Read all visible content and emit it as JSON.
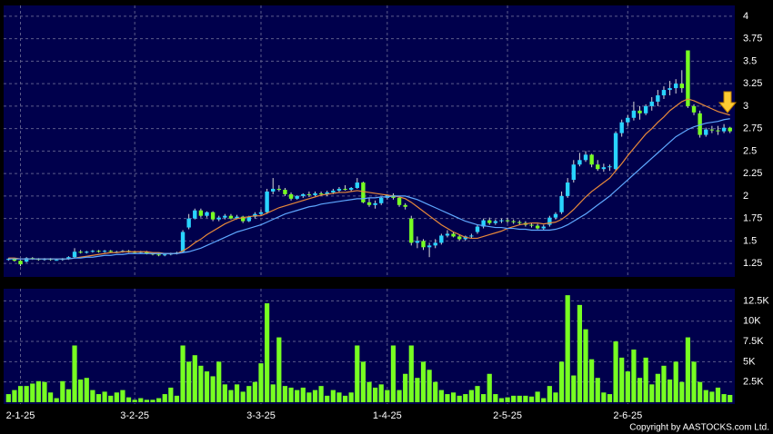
{
  "chart_data": [
    {
      "type": "candlestick",
      "categories": [
        null,
        null,
        "2-1-25",
        null,
        null,
        null,
        null,
        null,
        null,
        null,
        null,
        null,
        null,
        null,
        null,
        null,
        null,
        null,
        null,
        null,
        null,
        "3-2-25",
        null,
        null,
        null,
        null,
        null,
        null,
        null,
        null,
        null,
        null,
        null,
        null,
        null,
        null,
        null,
        null,
        null,
        null,
        null,
        null,
        "3-3-25",
        null,
        null,
        null,
        null,
        null,
        null,
        null,
        null,
        null,
        null,
        null,
        null,
        null,
        null,
        null,
        null,
        null,
        null,
        null,
        null,
        "1-4-25",
        null,
        null,
        null,
        null,
        null,
        null,
        null,
        null,
        null,
        null,
        null,
        null,
        null,
        null,
        null,
        null,
        null,
        null,
        null,
        "2-5-25",
        null,
        null,
        null,
        null,
        null,
        null,
        null,
        null,
        null,
        null,
        null,
        null,
        null,
        null,
        null,
        null,
        null,
        null,
        null,
        "2-6-25",
        null,
        null,
        null,
        null,
        null,
        null,
        null,
        null,
        null,
        null,
        null,
        null,
        null,
        null,
        null,
        null,
        null
      ],
      "open": [
        1.3,
        1.3,
        1.28,
        1.27,
        1.31,
        1.3,
        1.29,
        1.3,
        1.29,
        1.29,
        1.3,
        1.32,
        1.38,
        1.37,
        1.38,
        1.39,
        1.38,
        1.39,
        1.38,
        1.38,
        1.39,
        1.38,
        1.37,
        1.38,
        1.36,
        1.35,
        1.34,
        1.35,
        1.36,
        1.38,
        1.65,
        1.75,
        1.84,
        1.78,
        1.82,
        1.74,
        1.76,
        1.78,
        1.75,
        1.77,
        1.72,
        1.77,
        1.8,
        1.82,
        2.05,
        2.08,
        2.07,
        2.02,
        1.97,
        2.0,
        2.02,
        2.01,
        2.03,
        2.02,
        2.04,
        2.06,
        2.08,
        2.07,
        2.09,
        2.15,
        1.93,
        1.9,
        1.92,
        1.98,
        2.01,
        1.98,
        1.9,
        1.75,
        1.48,
        1.5,
        1.43,
        1.45,
        1.48,
        1.56,
        1.58,
        1.55,
        1.52,
        1.55,
        1.6,
        1.66,
        1.73,
        1.7,
        1.72,
        1.73,
        1.72,
        1.71,
        1.7,
        1.68,
        1.67,
        1.64,
        1.68,
        1.76,
        1.82,
        2.0,
        2.18,
        2.35,
        2.4,
        2.46,
        2.35,
        2.3,
        2.32,
        2.3,
        2.7,
        2.82,
        2.87,
        2.95,
        2.92,
        3.0,
        3.05,
        3.12,
        3.18,
        3.2,
        3.25,
        3.62,
        3.0,
        2.92,
        2.68,
        2.74,
        2.73,
        2.72,
        2.76
      ],
      "high": [
        1.31,
        1.31,
        1.29,
        1.32,
        1.32,
        1.31,
        1.31,
        1.31,
        1.3,
        1.31,
        1.33,
        1.42,
        1.4,
        1.39,
        1.4,
        1.4,
        1.4,
        1.4,
        1.39,
        1.4,
        1.4,
        1.39,
        1.39,
        1.39,
        1.37,
        1.37,
        1.36,
        1.37,
        1.38,
        1.62,
        1.8,
        1.86,
        1.86,
        1.83,
        1.83,
        1.78,
        1.8,
        1.8,
        1.79,
        1.78,
        1.78,
        1.82,
        1.85,
        2.08,
        2.2,
        2.12,
        2.09,
        2.04,
        2.01,
        2.03,
        2.05,
        2.05,
        2.05,
        2.06,
        2.08,
        2.1,
        2.12,
        2.1,
        2.2,
        2.16,
        1.98,
        1.95,
        1.99,
        2.02,
        2.03,
        1.99,
        1.92,
        1.78,
        1.55,
        1.52,
        1.48,
        1.52,
        1.58,
        1.62,
        1.6,
        1.57,
        1.56,
        1.58,
        1.68,
        1.75,
        1.76,
        1.74,
        1.75,
        1.76,
        1.74,
        1.73,
        1.72,
        1.7,
        1.69,
        1.68,
        1.78,
        1.82,
        2.05,
        2.2,
        2.4,
        2.48,
        2.5,
        2.47,
        2.4,
        2.36,
        2.35,
        2.72,
        2.85,
        2.9,
        3.05,
        3.0,
        3.02,
        3.1,
        3.18,
        3.22,
        3.28,
        3.3,
        3.4,
        3.62,
        3.02,
        2.95,
        2.76,
        2.78,
        2.78,
        2.8,
        2.77
      ],
      "low": [
        1.28,
        1.27,
        1.22,
        1.26,
        1.29,
        1.28,
        1.28,
        1.28,
        1.28,
        1.28,
        1.29,
        1.31,
        1.36,
        1.36,
        1.37,
        1.37,
        1.37,
        1.37,
        1.37,
        1.37,
        1.37,
        1.36,
        1.36,
        1.35,
        1.34,
        1.33,
        1.33,
        1.34,
        1.35,
        1.37,
        1.63,
        1.74,
        1.76,
        1.76,
        1.72,
        1.72,
        1.74,
        1.74,
        1.74,
        1.7,
        1.71,
        1.75,
        1.78,
        1.8,
        2.02,
        2.05,
        2.0,
        1.95,
        1.96,
        1.98,
        1.99,
        2.0,
        2.0,
        2.0,
        2.02,
        2.04,
        2.06,
        2.05,
        2.08,
        1.92,
        1.88,
        1.86,
        1.9,
        1.96,
        1.96,
        1.88,
        1.85,
        1.45,
        1.42,
        1.4,
        1.32,
        1.42,
        1.46,
        1.54,
        1.54,
        1.5,
        1.5,
        1.53,
        1.58,
        1.64,
        1.68,
        1.68,
        1.7,
        1.7,
        1.69,
        1.68,
        1.66,
        1.65,
        1.63,
        1.62,
        1.66,
        1.74,
        1.8,
        1.98,
        2.15,
        2.33,
        2.38,
        2.32,
        2.28,
        2.27,
        2.28,
        2.28,
        2.66,
        2.78,
        2.84,
        2.85,
        2.9,
        2.95,
        3.0,
        3.08,
        3.12,
        3.14,
        3.15,
        2.98,
        2.9,
        2.65,
        2.66,
        2.7,
        2.68,
        2.7,
        2.7
      ],
      "close": [
        1.3,
        1.28,
        1.24,
        1.31,
        1.3,
        1.29,
        1.3,
        1.29,
        1.29,
        1.3,
        1.32,
        1.38,
        1.37,
        1.38,
        1.39,
        1.38,
        1.39,
        1.38,
        1.38,
        1.39,
        1.38,
        1.37,
        1.38,
        1.36,
        1.35,
        1.34,
        1.35,
        1.36,
        1.37,
        1.6,
        1.75,
        1.84,
        1.78,
        1.82,
        1.74,
        1.76,
        1.78,
        1.75,
        1.77,
        1.72,
        1.77,
        1.8,
        1.82,
        2.05,
        2.08,
        2.07,
        2.02,
        1.97,
        2.0,
        2.02,
        2.01,
        2.03,
        2.02,
        2.04,
        2.06,
        2.08,
        2.07,
        2.09,
        2.15,
        1.93,
        1.9,
        1.92,
        1.98,
        2.01,
        1.98,
        1.9,
        1.88,
        1.48,
        1.5,
        1.43,
        1.45,
        1.48,
        1.56,
        1.58,
        1.55,
        1.52,
        1.55,
        1.56,
        1.66,
        1.73,
        1.7,
        1.72,
        1.73,
        1.72,
        1.71,
        1.7,
        1.68,
        1.67,
        1.64,
        1.66,
        1.76,
        1.8,
        2.0,
        2.15,
        2.35,
        2.4,
        2.46,
        2.35,
        2.3,
        2.32,
        2.33,
        2.7,
        2.82,
        2.87,
        2.95,
        2.92,
        3.0,
        3.05,
        3.12,
        3.18,
        3.2,
        3.25,
        3.2,
        3.0,
        2.93,
        2.68,
        2.74,
        2.73,
        2.72,
        2.76,
        2.72
      ],
      "up_color": "#29d4ff",
      "down_color": "#77ff22",
      "lines": [
        {
          "color": "#e8893a",
          "values": [
            1.31,
            1.31,
            1.3,
            1.3,
            1.3,
            1.3,
            1.3,
            1.3,
            1.3,
            1.3,
            1.3,
            1.31,
            1.32,
            1.33,
            1.34,
            1.35,
            1.36,
            1.37,
            1.37,
            1.38,
            1.38,
            1.38,
            1.38,
            1.38,
            1.37,
            1.37,
            1.36,
            1.36,
            1.36,
            1.39,
            1.43,
            1.48,
            1.52,
            1.57,
            1.61,
            1.65,
            1.69,
            1.72,
            1.75,
            1.76,
            1.77,
            1.78,
            1.78,
            1.81,
            1.84,
            1.87,
            1.89,
            1.91,
            1.93,
            1.95,
            1.97,
            1.99,
            2.01,
            2.02,
            2.03,
            2.04,
            2.04,
            2.05,
            2.06,
            2.05,
            2.04,
            2.03,
            2.02,
            2.01,
            2.0,
            1.99,
            1.97,
            1.93,
            1.88,
            1.83,
            1.78,
            1.73,
            1.68,
            1.64,
            1.6,
            1.57,
            1.54,
            1.53,
            1.53,
            1.55,
            1.57,
            1.59,
            1.61,
            1.64,
            1.66,
            1.68,
            1.69,
            1.7,
            1.7,
            1.69,
            1.7,
            1.71,
            1.74,
            1.79,
            1.85,
            1.92,
            1.99,
            2.05,
            2.1,
            2.15,
            2.2,
            2.28,
            2.36,
            2.45,
            2.53,
            2.61,
            2.69,
            2.75,
            2.82,
            2.88,
            2.95,
            3.0,
            3.05,
            3.08,
            3.06,
            3.03,
            3.0,
            2.97,
            2.94,
            2.92,
            2.9
          ]
        },
        {
          "color": "#5fa8ff",
          "values": [
            1.3,
            1.3,
            1.3,
            1.3,
            1.3,
            1.3,
            1.3,
            1.3,
            1.3,
            1.3,
            1.3,
            1.31,
            1.31,
            1.32,
            1.32,
            1.33,
            1.34,
            1.34,
            1.35,
            1.35,
            1.36,
            1.36,
            1.36,
            1.36,
            1.36,
            1.36,
            1.36,
            1.36,
            1.36,
            1.37,
            1.38,
            1.4,
            1.42,
            1.45,
            1.48,
            1.51,
            1.54,
            1.57,
            1.6,
            1.62,
            1.64,
            1.66,
            1.68,
            1.71,
            1.74,
            1.77,
            1.8,
            1.82,
            1.84,
            1.86,
            1.88,
            1.89,
            1.91,
            1.92,
            1.93,
            1.94,
            1.95,
            1.96,
            1.97,
            1.97,
            1.98,
            1.98,
            1.99,
            1.99,
            2.0,
            2.0,
            2.0,
            1.98,
            1.96,
            1.93,
            1.9,
            1.87,
            1.84,
            1.81,
            1.78,
            1.75,
            1.72,
            1.7,
            1.68,
            1.67,
            1.66,
            1.65,
            1.65,
            1.64,
            1.64,
            1.63,
            1.63,
            1.62,
            1.62,
            1.62,
            1.62,
            1.63,
            1.65,
            1.68,
            1.72,
            1.76,
            1.8,
            1.85,
            1.9,
            1.95,
            2.0,
            2.06,
            2.12,
            2.18,
            2.24,
            2.3,
            2.36,
            2.42,
            2.48,
            2.54,
            2.6,
            2.66,
            2.7,
            2.74,
            2.77,
            2.79,
            2.81,
            2.82,
            2.83,
            2.85,
            2.86
          ]
        }
      ],
      "ylim": [
        1.1,
        4.12
      ],
      "yticks": [
        1.25,
        1.5,
        1.75,
        2,
        2.25,
        2.5,
        2.75,
        3,
        3.25,
        3.5,
        3.75,
        4
      ],
      "grid": true
    },
    {
      "type": "bar",
      "values": [
        1000,
        1500,
        2000,
        2000,
        2300,
        2600,
        2500,
        1200,
        500,
        2600,
        1600,
        7000,
        2800,
        3000,
        1500,
        1000,
        1300,
        800,
        1200,
        1500,
        600,
        300,
        500,
        300,
        300,
        500,
        1000,
        1800,
        800,
        7000,
        5000,
        5800,
        4500,
        3800,
        3200,
        5000,
        2200,
        1500,
        2200,
        1300,
        2000,
        2500,
        4800,
        12200,
        2200,
        8000,
        2000,
        1800,
        1500,
        1800,
        1200,
        1500,
        2000,
        800,
        1500,
        1200,
        800,
        1200,
        7000,
        5000,
        2500,
        1800,
        2200,
        1500,
        7000,
        1500,
        3500,
        7000,
        3000,
        5000,
        4000,
        2500,
        1500,
        1000,
        1200,
        800,
        1000,
        1500,
        2000,
        1000,
        3500,
        1000,
        500,
        600,
        800,
        800,
        800,
        700,
        1300,
        500,
        2000,
        1200,
        5000,
        13200,
        3300,
        12000,
        9000,
        5300,
        3000,
        1200,
        1000,
        7500,
        5500,
        3800,
        6500,
        3000,
        5500,
        2200,
        3500,
        4500,
        2800,
        5000,
        2500,
        8000,
        5000,
        2500,
        1500,
        1300,
        1800,
        1000,
        900
      ],
      "color": "#77ff22",
      "ylim": [
        0,
        14000
      ],
      "yticks": [
        {
          "value": 2500,
          "label": "2.5K"
        },
        {
          "value": 5000,
          "label": "5K"
        },
        {
          "value": 7500,
          "label": "7.5K"
        },
        {
          "value": 10000,
          "label": "10K"
        },
        {
          "value": 12500,
          "label": "12.5K"
        }
      ],
      "grid": true
    }
  ],
  "copyright": "Copyright by AASTOCKS.com Ltd."
}
